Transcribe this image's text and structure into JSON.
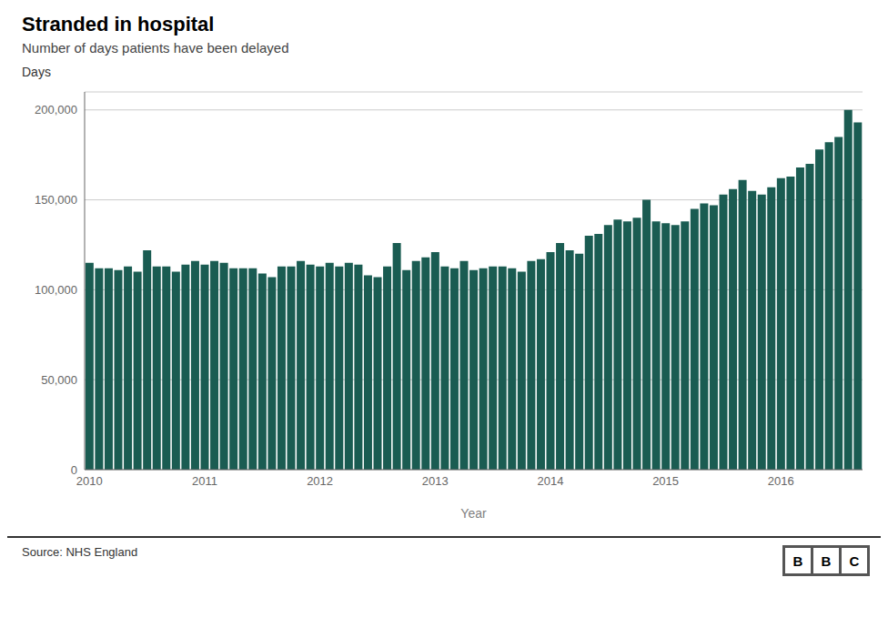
{
  "chart_data": {
    "type": "bar",
    "title": "Stranded in hospital",
    "subtitle": "Number of days patients have been delayed",
    "ylabel": "Days",
    "xlabel": "Year",
    "source": "Source: NHS England",
    "logo": "BBC",
    "color": "#1a5c52",
    "grid": true,
    "ylim": [
      0,
      210000
    ],
    "yticks": [
      0,
      {
        "value": 50000,
        "label": "50,000"
      },
      {
        "value": 100000,
        "label": "100,000"
      },
      {
        "value": 150000,
        "label": "150,000"
      },
      {
        "value": 200000,
        "label": "200,000"
      }
    ],
    "categories": [
      "2010",
      null,
      null,
      null,
      null,
      null,
      null,
      null,
      null,
      null,
      null,
      null,
      "2011",
      null,
      null,
      null,
      null,
      null,
      null,
      null,
      null,
      null,
      null,
      null,
      "2012",
      null,
      null,
      null,
      null,
      null,
      null,
      null,
      null,
      null,
      null,
      null,
      "2013",
      null,
      null,
      null,
      null,
      null,
      null,
      null,
      null,
      null,
      null,
      null,
      "2014",
      null,
      null,
      null,
      null,
      null,
      null,
      null,
      null,
      null,
      null,
      null,
      "2015",
      null,
      null,
      null,
      null,
      null,
      null,
      null,
      null,
      null,
      null,
      null,
      "2016",
      null,
      null,
      null,
      null,
      null,
      null,
      null,
      null
    ],
    "values": [
      115000,
      112000,
      112000,
      111000,
      113000,
      110000,
      122000,
      113000,
      113000,
      110000,
      114000,
      116000,
      114000,
      116000,
      115000,
      112000,
      112000,
      112000,
      109000,
      107000,
      113000,
      113000,
      116000,
      114000,
      113000,
      115000,
      113000,
      115000,
      114000,
      108000,
      107000,
      113000,
      126000,
      111000,
      116000,
      118000,
      121000,
      113000,
      112000,
      116000,
      111000,
      112000,
      113000,
      113000,
      112000,
      110000,
      116000,
      117000,
      121000,
      126000,
      122000,
      120000,
      130000,
      131000,
      136000,
      139000,
      138000,
      140000,
      150000,
      138000,
      137000,
      136000,
      138000,
      145000,
      148000,
      147000,
      153000,
      156000,
      161000,
      155000,
      153000,
      157000,
      162000,
      163000,
      168000,
      170000,
      178000,
      182000,
      185000,
      200000,
      193000
    ]
  }
}
